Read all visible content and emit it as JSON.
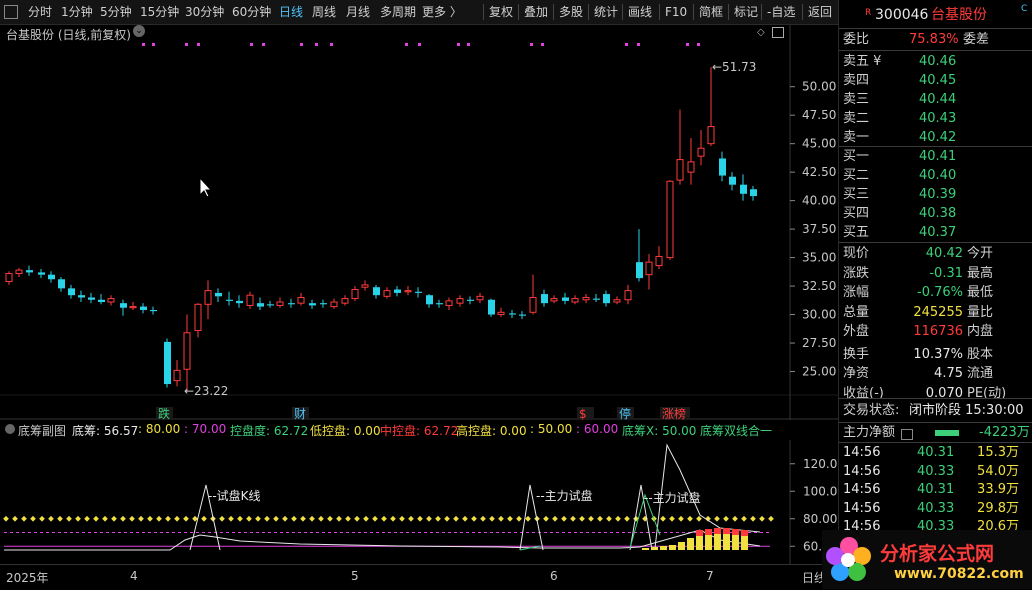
{
  "toolbar": {
    "items": [
      {
        "label": "分时"
      },
      {
        "label": "1分钟"
      },
      {
        "label": "5分钟"
      },
      {
        "label": "15分钟"
      },
      {
        "label": "30分钟"
      },
      {
        "label": "60分钟"
      },
      {
        "label": "日线"
      },
      {
        "label": "周线"
      },
      {
        "label": "月线"
      },
      {
        "label": "多周期"
      },
      {
        "label": "更多 〉"
      }
    ],
    "right_items": [
      {
        "label": "复权"
      },
      {
        "label": "叠加"
      },
      {
        "label": "多股"
      },
      {
        "label": "统计"
      },
      {
        "label": "画线"
      },
      {
        "label": "F10"
      },
      {
        "label": "简框"
      },
      {
        "label": "标记"
      },
      {
        "label": "-自选"
      },
      {
        "label": "返回"
      }
    ]
  },
  "main_chart": {
    "title": "台基股份 (日线,前复权)",
    "high_label": "51.73",
    "low_label": "23.22",
    "y_ticks": [
      "50.00",
      "47.50",
      "45.00",
      "42.50",
      "40.00",
      "37.50",
      "35.00",
      "32.50",
      "30.00",
      "27.50",
      "25.00"
    ],
    "event_tags": [
      {
        "text": "跌",
        "color": "#3cd07a"
      },
      {
        "text": "财",
        "color": "#4fc3f7"
      },
      {
        "text": "$",
        "color": "#ff3b3b"
      },
      {
        "text": "停",
        "color": "#4fc3f7"
      },
      {
        "text": "涨榜",
        "color": "#ff3b3b"
      }
    ]
  },
  "quote": {
    "badge": "R",
    "code": "300046",
    "name": "台基股份",
    "corner": "C",
    "weibi_label": "委比",
    "weibi_value": "75.83%",
    "weicha_label": "委差",
    "asks": [
      {
        "label": "卖五 ¥",
        "price": "40.46"
      },
      {
        "label": "卖四",
        "price": "40.45"
      },
      {
        "label": "卖三",
        "price": "40.44"
      },
      {
        "label": "卖二",
        "price": "40.43"
      },
      {
        "label": "卖一",
        "price": "40.42"
      }
    ],
    "bids": [
      {
        "label": "买一",
        "price": "40.41"
      },
      {
        "label": "买二",
        "price": "40.40"
      },
      {
        "label": "买三",
        "price": "40.39"
      },
      {
        "label": "买四",
        "price": "40.38"
      },
      {
        "label": "买五",
        "price": "40.37"
      }
    ],
    "stats": [
      {
        "l1": "现价",
        "v1": "40.42",
        "l2": "今开"
      },
      {
        "l1": "涨跌",
        "v1": "-0.31",
        "l2": "最高"
      },
      {
        "l1": "涨幅",
        "v1": "-0.76%",
        "l2": "最低"
      },
      {
        "l1": "总量",
        "v1": "245255",
        "l2": "量比"
      },
      {
        "l1": "外盘",
        "v1": "116736",
        "l2": "内盘"
      },
      {
        "l1": "换手",
        "v1": "10.37%",
        "l2": "股本"
      },
      {
        "l1": "净资",
        "v1": "4.75",
        "l2": "流通"
      },
      {
        "l1": "收益(-)",
        "v1": "0.070",
        "l2": "PE(动)"
      }
    ],
    "state_label": "交易状态:",
    "state_value": "闭市阶段 15:30:00",
    "flow_label": "主力净额",
    "flow_value": "-4223万",
    "ticks": [
      {
        "time": "14:56",
        "price": "40.31",
        "vol": "15.3万"
      },
      {
        "time": "14:56",
        "price": "40.33",
        "vol": "54.0万"
      },
      {
        "time": "14:56",
        "price": "40.31",
        "vol": "33.9万"
      },
      {
        "time": "14:56",
        "price": "40.33",
        "vol": "29.8万"
      },
      {
        "time": "14:56",
        "price": "40.33",
        "vol": "20.6万"
      }
    ]
  },
  "sub_indicator": {
    "name": "底筹副图",
    "legend": [
      {
        "text": "底筹: 56.57",
        "color": "#e8e8e8"
      },
      {
        "text": ": 80.00",
        "color": "#f0e040"
      },
      {
        "text": ": 70.00",
        "color": "#e040e0"
      },
      {
        "text": "控盘度: 62.72",
        "color": "#3cd07a"
      },
      {
        "text": "低控盘: 0.00",
        "color": "#f0e040"
      },
      {
        "text": "中控盘: 62.72",
        "color": "#ff3b3b"
      },
      {
        "text": "高控盘: 0.00",
        "color": "#f0e040"
      },
      {
        "text": ": 50.00",
        "color": "#f0e040"
      },
      {
        "text": ": 60.00",
        "color": "#e040e0"
      },
      {
        "text": "底筹X: 50.00",
        "color": "#3cd07a"
      },
      {
        "text": "底筹双线合一",
        "color": "#3cd07a"
      }
    ],
    "y_ticks": [
      "120.0",
      "100.0",
      "80.00",
      "60.0"
    ],
    "annotations": [
      "试盘K线",
      "主力试盘",
      "主力试盘"
    ]
  },
  "x_axis": {
    "labels": [
      "2025年",
      "4",
      "5",
      "6",
      "7"
    ],
    "period": "日线"
  },
  "watermark": {
    "brand": "分析家公式网",
    "url": "www.70822.com"
  }
}
